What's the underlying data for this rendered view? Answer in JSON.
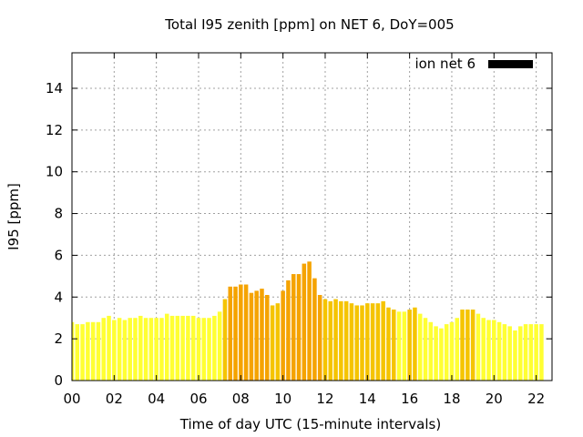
{
  "chart_data": {
    "type": "bar",
    "title": "Total I95 zenith [ppm] on NET 6, DoY=005",
    "xlabel": "Time of day UTC (15-minute intervals)",
    "ylabel": "I95 [ppm]",
    "xlim": [
      0,
      22.75
    ],
    "ylim": [
      0,
      15.7
    ],
    "xticks": [
      "00",
      "02",
      "04",
      "06",
      "08",
      "10",
      "12",
      "14",
      "16",
      "18",
      "20",
      "22"
    ],
    "yticks": [
      "0",
      "2",
      "4",
      "6",
      "8",
      "10",
      "12",
      "14"
    ],
    "grid": true,
    "legend": {
      "position": "top-right",
      "label": "ion net 6",
      "color": "#000000"
    },
    "colors": {
      "low": "#ffff33",
      "mid": "#f5c400",
      "high": "#f5a300"
    },
    "interval_hours": 0.25,
    "values": [
      2.8,
      2.7,
      2.7,
      2.8,
      2.8,
      2.8,
      3.0,
      3.1,
      2.9,
      3.0,
      2.9,
      3.0,
      3.0,
      3.1,
      3.0,
      3.0,
      3.0,
      3.0,
      3.2,
      3.1,
      3.1,
      3.1,
      3.1,
      3.1,
      3.0,
      3.0,
      3.0,
      3.1,
      3.3,
      3.9,
      4.5,
      4.5,
      4.6,
      4.6,
      4.2,
      4.3,
      4.4,
      4.1,
      3.6,
      3.7,
      4.3,
      4.8,
      5.1,
      5.1,
      5.6,
      5.7,
      4.9,
      4.1,
      3.9,
      3.8,
      3.9,
      3.8,
      3.8,
      3.7,
      3.6,
      3.6,
      3.7,
      3.7,
      3.7,
      3.8,
      3.5,
      3.4,
      3.3,
      3.3,
      3.4,
      3.5,
      3.2,
      3.0,
      2.8,
      2.6,
      2.5,
      2.7,
      2.8,
      3.0,
      3.4,
      3.4,
      3.4,
      3.2,
      3.0,
      2.9,
      2.9,
      2.8,
      2.7,
      2.6,
      2.4,
      2.6,
      2.7,
      2.7,
      2.7,
      2.7
    ]
  }
}
